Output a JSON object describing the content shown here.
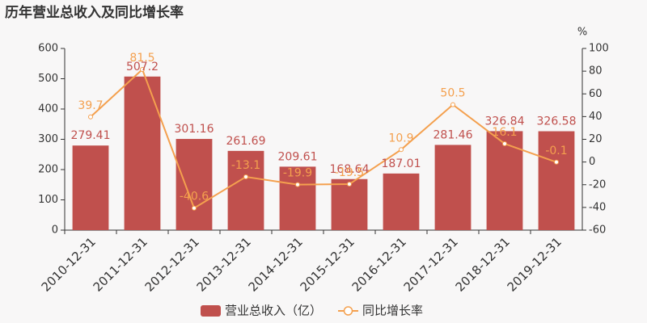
{
  "chart_data": {
    "type": "bar",
    "title": "历年营业总收入及同比增长率",
    "categories": [
      "2010-12-31",
      "2011-12-31",
      "2012-12-31",
      "2013-12-31",
      "2014-12-31",
      "2015-12-31",
      "2016-12-31",
      "2017-12-31",
      "2018-12-31",
      "2019-12-31"
    ],
    "series": [
      {
        "name": "营业总收入（亿）",
        "type": "bar",
        "color": "#c0504d",
        "values": [
          279.41,
          507.2,
          301.16,
          261.69,
          209.61,
          168.64,
          187.01,
          281.46,
          326.84,
          326.58
        ]
      },
      {
        "name": "同比增长率",
        "type": "line",
        "axis": "y2",
        "color": "#f4a04e",
        "values": [
          39.7,
          81.5,
          -40.6,
          -13.1,
          -19.9,
          -19.5,
          10.9,
          50.5,
          16.1,
          -0.1
        ]
      }
    ],
    "ylim": [
      0,
      600
    ],
    "yticks": [
      0,
      100,
      200,
      300,
      400,
      500,
      600
    ],
    "y2lim": [
      -60,
      100
    ],
    "y2ticks": [
      -60,
      -40,
      -20,
      0,
      20,
      40,
      60,
      80,
      100
    ],
    "y2_label": "%",
    "grid": false,
    "legend": "bottom"
  }
}
